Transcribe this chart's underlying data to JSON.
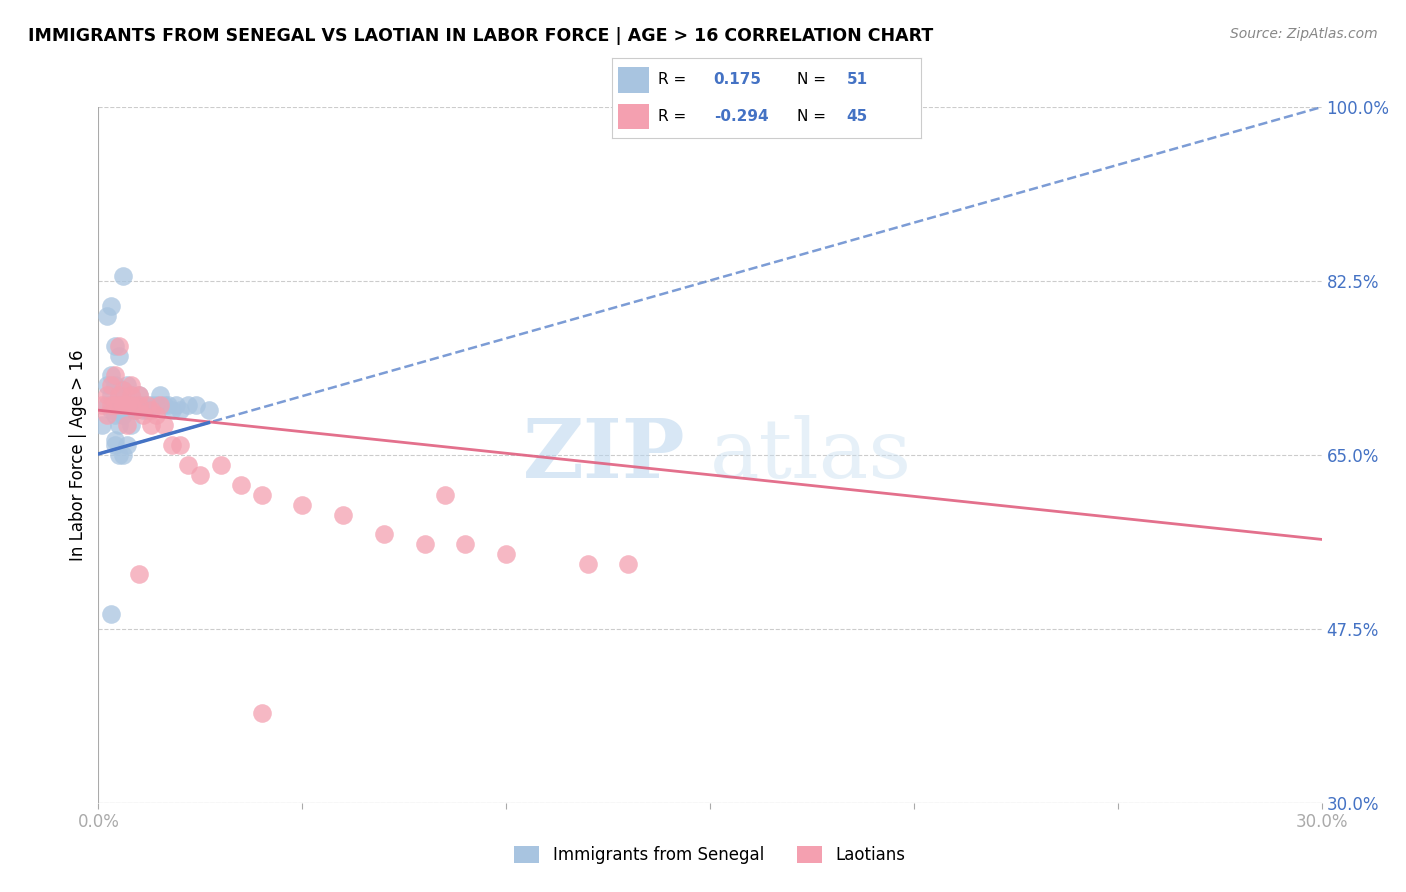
{
  "title": "IMMIGRANTS FROM SENEGAL VS LAOTIAN IN LABOR FORCE | AGE > 16 CORRELATION CHART",
  "source": "Source: ZipAtlas.com",
  "ylabel": "In Labor Force | Age > 16",
  "xlim": [
    0.0,
    0.3
  ],
  "ylim": [
    0.3,
    1.0
  ],
  "yticks_right": [
    1.0,
    0.825,
    0.65,
    0.475,
    0.3
  ],
  "ytick_labels_right": [
    "100.0%",
    "82.5%",
    "65.0%",
    "47.5%",
    "30.0%"
  ],
  "senegal_color": "#a8c4e0",
  "laotian_color": "#f4a0b0",
  "senegal_line_color": "#4472c4",
  "laotian_line_color": "#e06080",
  "R_senegal": 0.175,
  "N_senegal": 51,
  "R_laotian": -0.294,
  "N_laotian": 45,
  "legend_label_senegal": "Immigrants from Senegal",
  "legend_label_laotian": "Laotians",
  "watermark_zip": "ZIP",
  "watermark_atlas": "atlas",
  "background_color": "#ffffff",
  "blue_trend": [
    0.0,
    0.651,
    0.3,
    1.0
  ],
  "pink_trend": [
    0.0,
    0.695,
    0.3,
    0.565
  ],
  "senegal_x": [
    0.001,
    0.002,
    0.002,
    0.003,
    0.003,
    0.003,
    0.004,
    0.004,
    0.004,
    0.005,
    0.005,
    0.005,
    0.005,
    0.006,
    0.006,
    0.006,
    0.007,
    0.007,
    0.007,
    0.008,
    0.008,
    0.008,
    0.009,
    0.009,
    0.01,
    0.01,
    0.011,
    0.011,
    0.012,
    0.013,
    0.014,
    0.015,
    0.016,
    0.017,
    0.018,
    0.019,
    0.02,
    0.022,
    0.024,
    0.027,
    0.002,
    0.003,
    0.004,
    0.005,
    0.006,
    0.003,
    0.004,
    0.005,
    0.006,
    0.007,
    0.004
  ],
  "senegal_y": [
    0.68,
    0.7,
    0.72,
    0.695,
    0.71,
    0.73,
    0.7,
    0.69,
    0.72,
    0.7,
    0.71,
    0.695,
    0.68,
    0.7,
    0.715,
    0.69,
    0.7,
    0.72,
    0.695,
    0.7,
    0.71,
    0.68,
    0.7,
    0.695,
    0.7,
    0.71,
    0.695,
    0.7,
    0.695,
    0.7,
    0.7,
    0.71,
    0.7,
    0.7,
    0.695,
    0.7,
    0.695,
    0.7,
    0.7,
    0.695,
    0.79,
    0.8,
    0.76,
    0.75,
    0.83,
    0.49,
    0.66,
    0.65,
    0.65,
    0.66,
    0.665
  ],
  "laotian_x": [
    0.001,
    0.002,
    0.002,
    0.003,
    0.003,
    0.004,
    0.004,
    0.005,
    0.005,
    0.006,
    0.006,
    0.007,
    0.007,
    0.008,
    0.008,
    0.009,
    0.01,
    0.01,
    0.011,
    0.012,
    0.013,
    0.013,
    0.014,
    0.015,
    0.016,
    0.018,
    0.02,
    0.022,
    0.025,
    0.03,
    0.035,
    0.04,
    0.05,
    0.06,
    0.07,
    0.08,
    0.085,
    0.09,
    0.1,
    0.12,
    0.005,
    0.008,
    0.01,
    0.13,
    0.04
  ],
  "laotian_y": [
    0.7,
    0.69,
    0.71,
    0.7,
    0.72,
    0.7,
    0.73,
    0.7,
    0.71,
    0.7,
    0.715,
    0.7,
    0.68,
    0.7,
    0.71,
    0.695,
    0.7,
    0.71,
    0.69,
    0.7,
    0.695,
    0.68,
    0.69,
    0.7,
    0.68,
    0.66,
    0.66,
    0.64,
    0.63,
    0.64,
    0.62,
    0.61,
    0.6,
    0.59,
    0.57,
    0.56,
    0.61,
    0.56,
    0.55,
    0.54,
    0.76,
    0.72,
    0.53,
    0.54,
    0.39
  ]
}
